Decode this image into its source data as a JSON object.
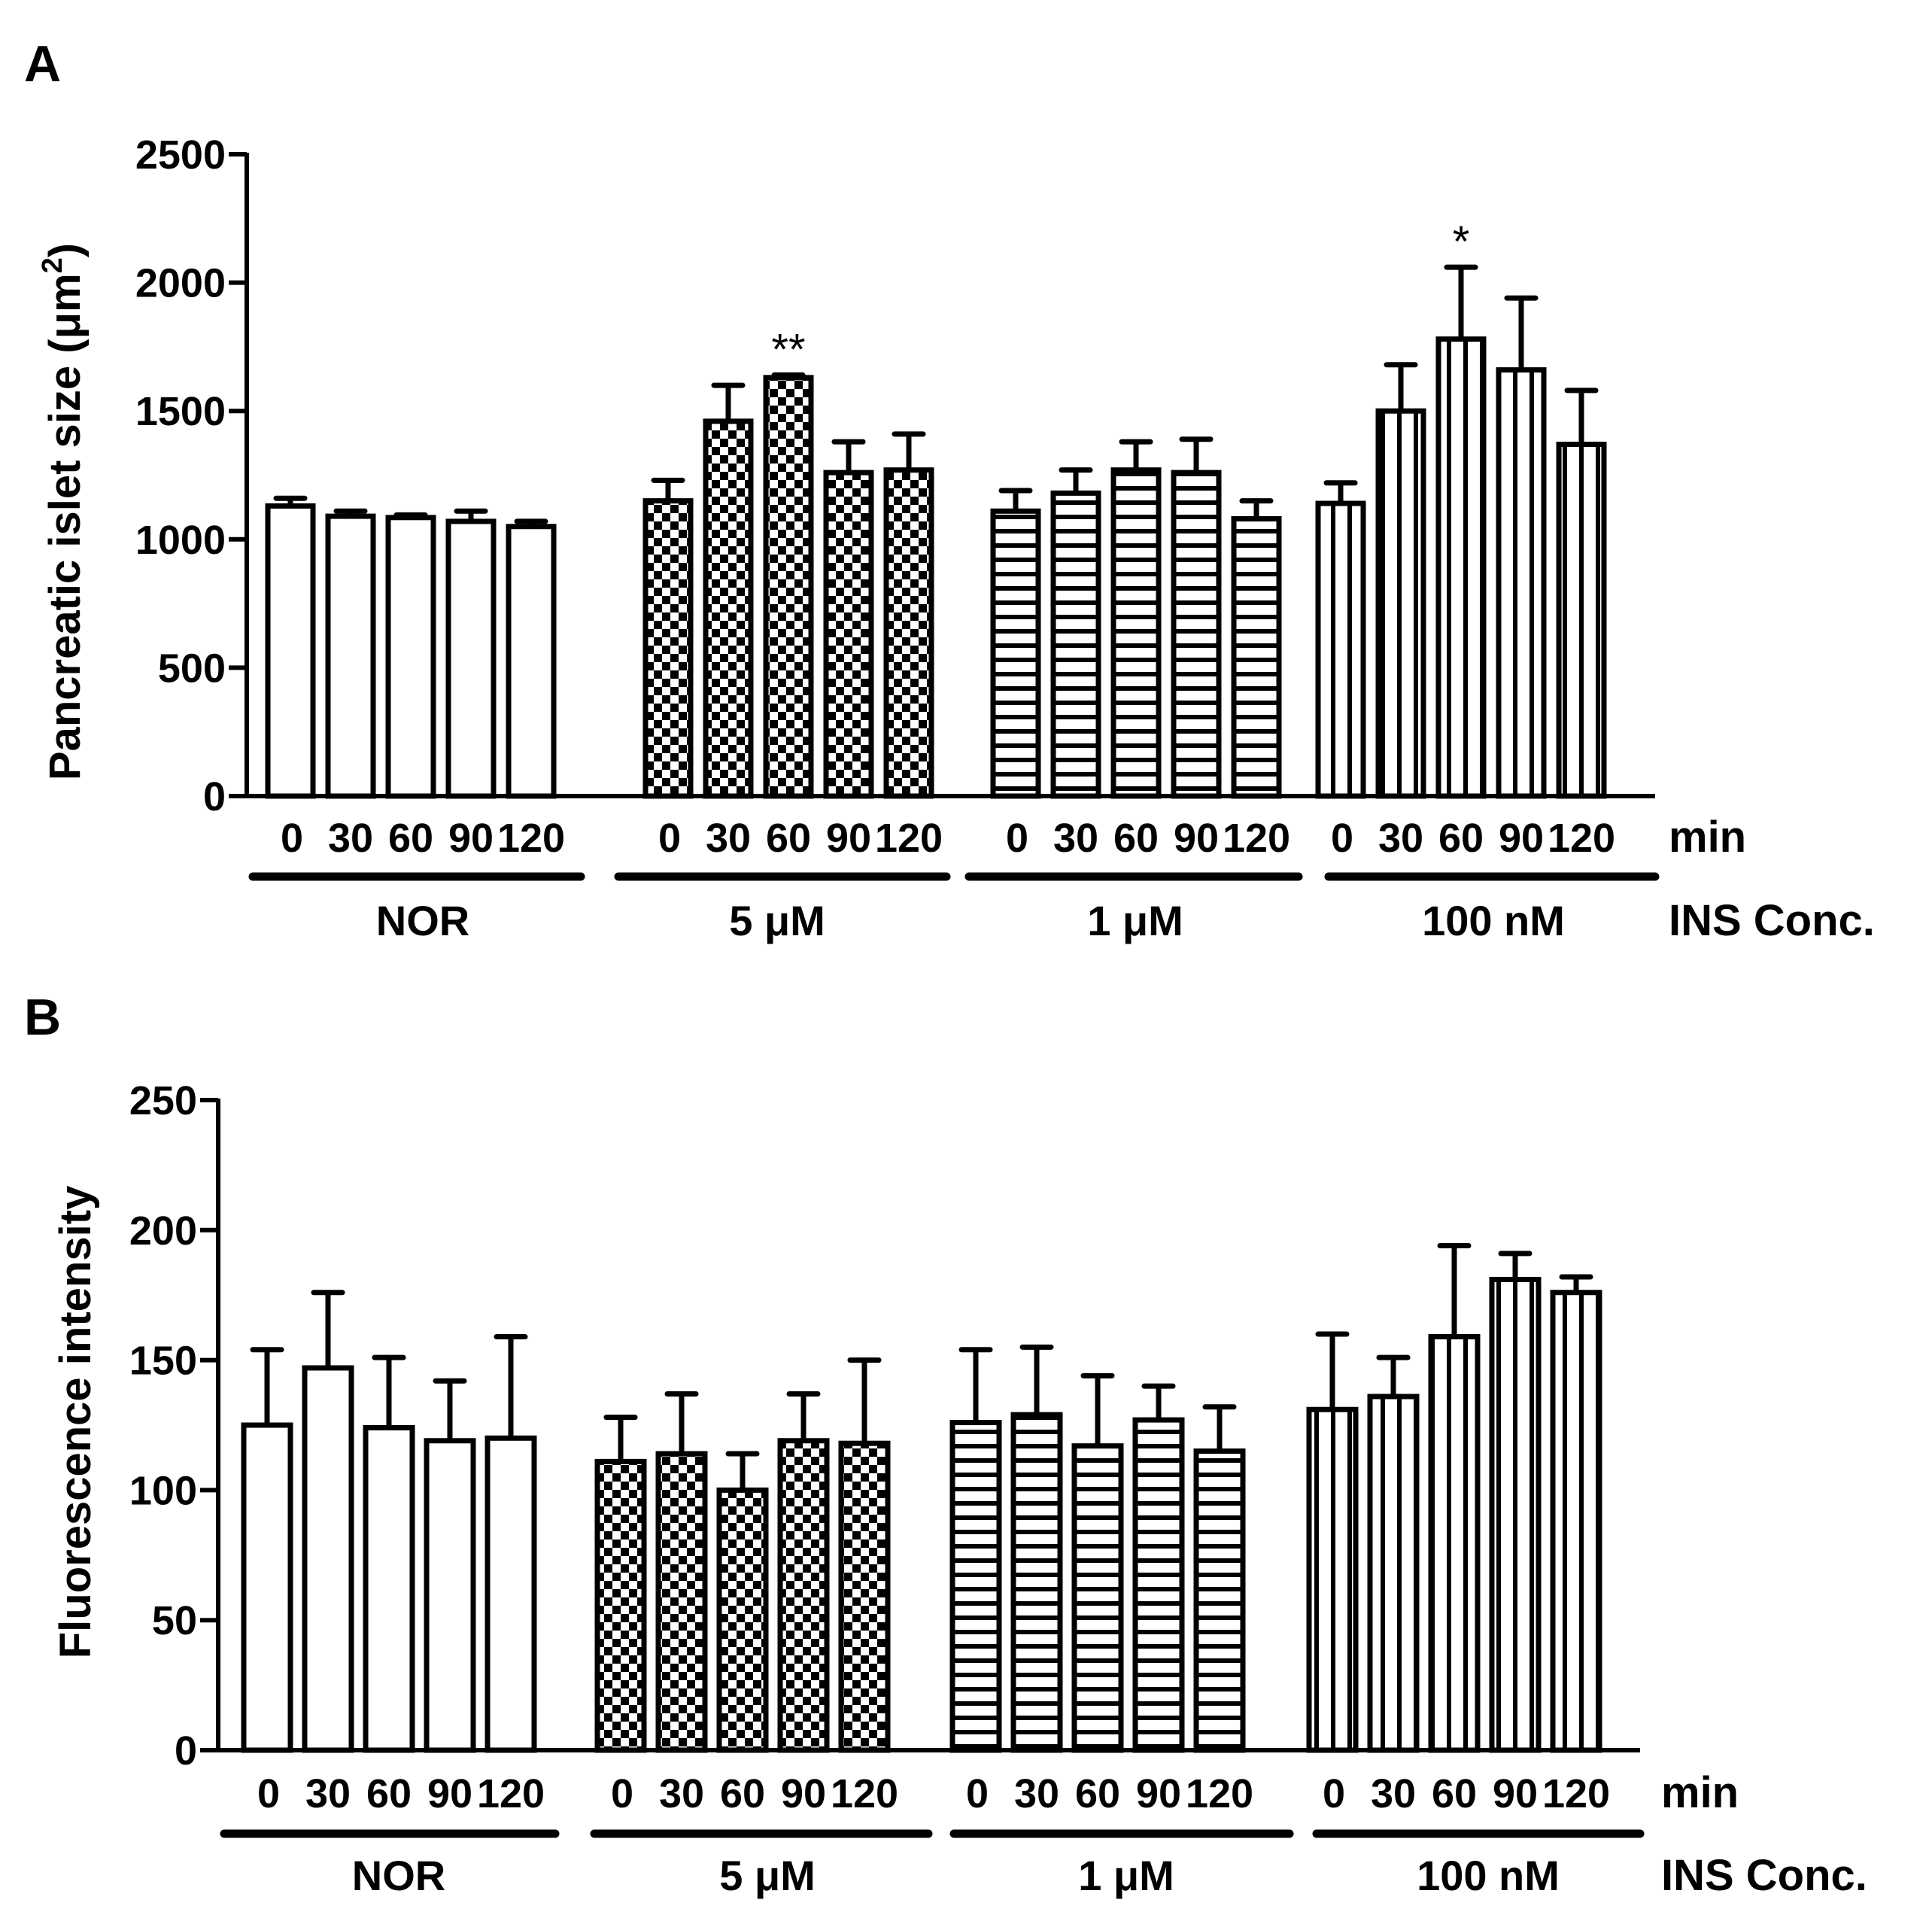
{
  "chart_data": [
    {
      "type": "bar",
      "panel": "A",
      "ylabel": "Pancreatic islet size (μm",
      "ylabel_sup": "2",
      "ylabel_end": ")",
      "ylim": [
        0,
        2500
      ],
      "yticks": [
        "0",
        "500",
        "1000",
        "1500",
        "2000",
        "2500"
      ],
      "time_labels": [
        "0",
        "30",
        "60",
        "90",
        "120"
      ],
      "time_unit": "min",
      "conc_title": "INS Conc.",
      "groups": [
        {
          "name": "NOR",
          "pattern": "open",
          "values": [
            1130,
            1090,
            1085,
            1070,
            1050
          ],
          "errors": [
            30,
            20,
            10,
            40,
            20
          ],
          "annotations": [
            "",
            "",
            "",
            "",
            ""
          ]
        },
        {
          "name": "5 μM",
          "pattern": "check",
          "values": [
            1150,
            1460,
            1630,
            1260,
            1270
          ],
          "errors": [
            80,
            140,
            10,
            120,
            140
          ],
          "annotations": [
            "",
            "",
            "**",
            "",
            ""
          ]
        },
        {
          "name": "1 μM",
          "pattern": "hstripe",
          "values": [
            1110,
            1180,
            1270,
            1260,
            1080
          ],
          "errors": [
            80,
            90,
            110,
            130,
            70
          ],
          "annotations": [
            "",
            "",
            "",
            "",
            ""
          ]
        },
        {
          "name": "100 nM",
          "pattern": "vstripe",
          "values": [
            1140,
            1500,
            1780,
            1660,
            1370
          ],
          "errors": [
            80,
            180,
            280,
            280,
            210
          ],
          "annotations": [
            "",
            "",
            "*",
            "",
            ""
          ]
        }
      ]
    },
    {
      "type": "bar",
      "panel": "B",
      "ylabel": "Fluorescence intensity",
      "ylabel_sup": "",
      "ylabel_end": "",
      "ylim": [
        0,
        250
      ],
      "yticks": [
        "0",
        "50",
        "100",
        "150",
        "200",
        "250"
      ],
      "time_labels": [
        "0",
        "30",
        "60",
        "90",
        "120"
      ],
      "time_unit": "min",
      "conc_title": "INS Conc.",
      "groups": [
        {
          "name": "NOR",
          "pattern": "open",
          "values": [
            125,
            147,
            124,
            119,
            120
          ],
          "errors": [
            29,
            29,
            27,
            23,
            39
          ],
          "annotations": [
            "",
            "",
            "",
            "",
            ""
          ]
        },
        {
          "name": "5 μM",
          "pattern": "check",
          "values": [
            111,
            114,
            100,
            119,
            118
          ],
          "errors": [
            17,
            23,
            14,
            18,
            32
          ],
          "annotations": [
            "",
            "",
            "",
            "",
            ""
          ]
        },
        {
          "name": "1 μM",
          "pattern": "hstripe",
          "values": [
            126,
            129,
            117,
            127,
            115
          ],
          "errors": [
            28,
            26,
            27,
            13,
            17
          ],
          "annotations": [
            "",
            "",
            "",
            "",
            ""
          ]
        },
        {
          "name": "100 nM",
          "pattern": "vstripe",
          "values": [
            131,
            136,
            159,
            181,
            176
          ],
          "errors": [
            29,
            15,
            35,
            10,
            6
          ],
          "annotations": [
            "",
            "",
            "",
            "",
            ""
          ]
        }
      ]
    }
  ]
}
